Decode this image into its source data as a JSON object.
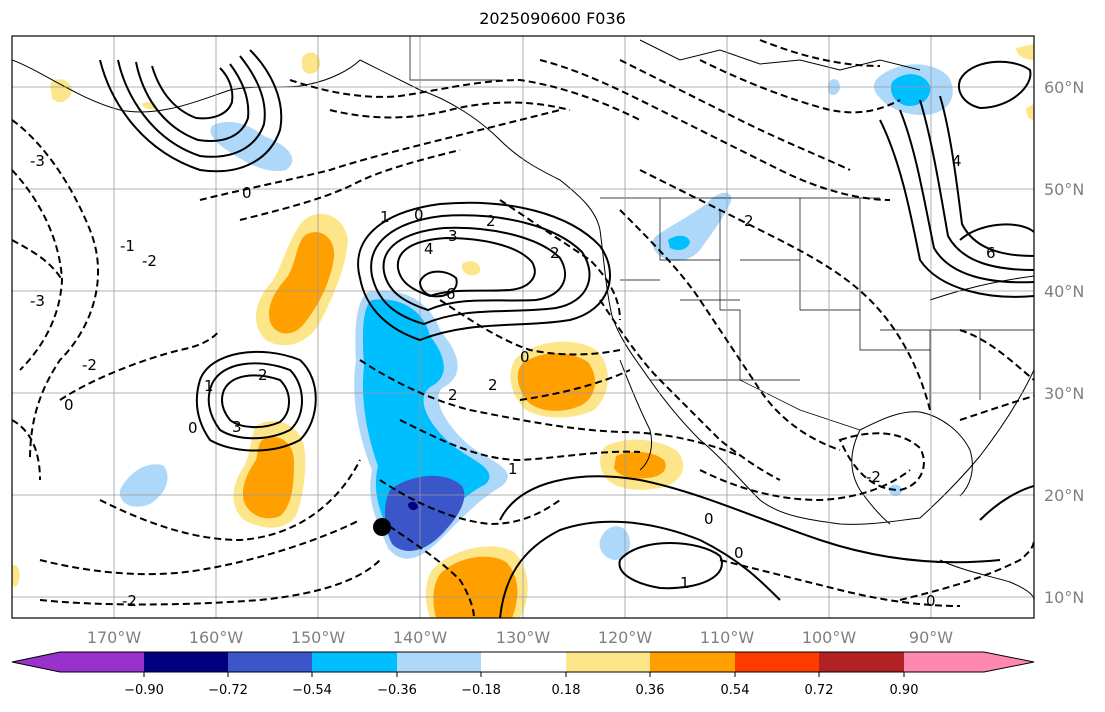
{
  "title": "2025090600 F036",
  "latitude_labels": [
    "60°N",
    "50°N",
    "40°N",
    "30°N",
    "20°N",
    "10°N"
  ],
  "longitude_labels": [
    "170°W",
    "160°W",
    "150°W",
    "140°W",
    "130°W",
    "120°W",
    "110°W",
    "100°W",
    "90°W"
  ],
  "colorbar": {
    "tick_labels": [
      "−0.90",
      "−0.72",
      "−0.54",
      "−0.36",
      "−0.18",
      "0.18",
      "0.36",
      "0.54",
      "0.72",
      "0.90"
    ],
    "colors": [
      "#9932cc",
      "#000080",
      "#3a56c8",
      "#00bfff",
      "#add8fa",
      "#ffffff",
      "#fde68a",
      "#ffa000",
      "#ff3c00",
      "#b22222",
      "#ff88b0"
    ]
  },
  "contour_labels": [
    "1",
    "2",
    "3",
    "4",
    "6",
    "0",
    "-1",
    "-2",
    "-3",
    "-2",
    "0",
    "2",
    "1",
    "0",
    "1",
    "2",
    "3",
    "0",
    "0",
    "1",
    "0",
    "0",
    "1",
    "-2",
    "-3",
    "4",
    "0",
    "2",
    "2",
    "-2",
    "6",
    "2"
  ],
  "colors": {
    "axis_text": "#808080",
    "grid": "#9a9a9a",
    "marker": "#000000"
  }
}
